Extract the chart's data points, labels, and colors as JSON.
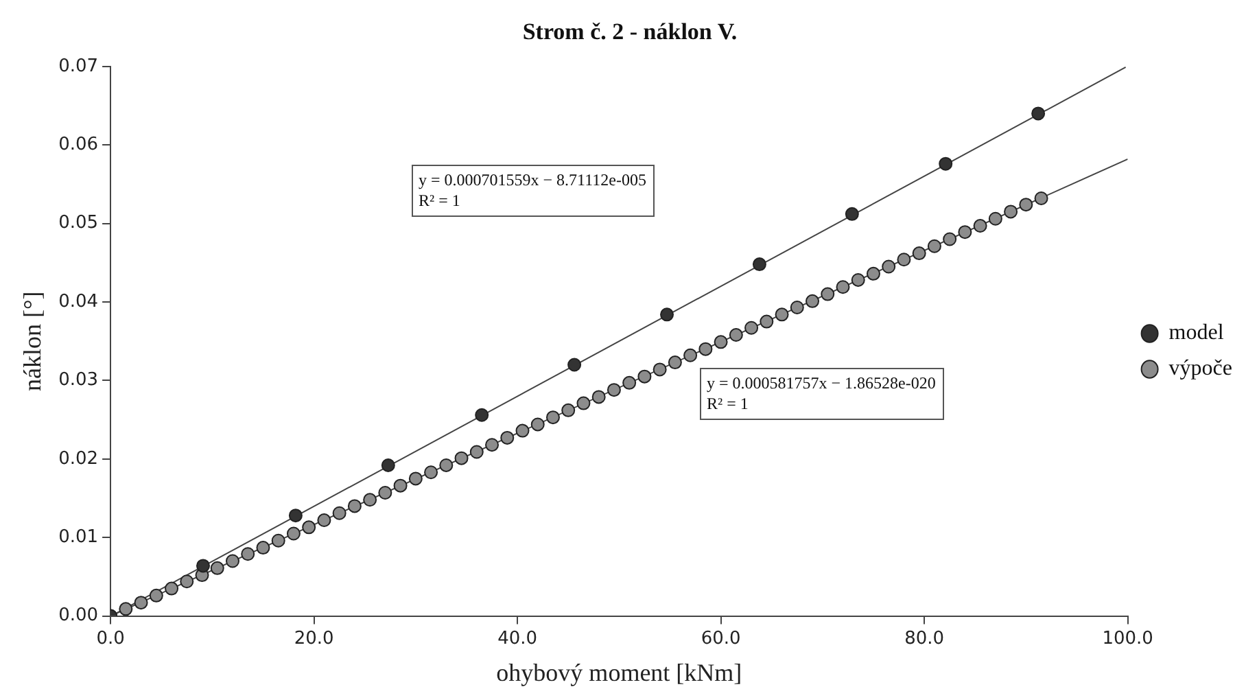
{
  "chart_data": {
    "type": "scatter",
    "title": "Strom č. 2 - náklon V.",
    "xlabel": "ohybový moment [kNm]",
    "ylabel": "náklon [°]",
    "xlim": [
      0,
      100
    ],
    "xticks": [
      {
        "value": 0,
        "label": "0.0"
      },
      {
        "value": 20,
        "label": "20.0"
      },
      {
        "value": 40,
        "label": "40.0"
      },
      {
        "value": 60,
        "label": "60.0"
      },
      {
        "value": 80,
        "label": "80.0"
      },
      {
        "value": 100,
        "label": "100.0"
      }
    ],
    "ylim": [
      0,
      0.07
    ],
    "yticks": [
      {
        "value": 0,
        "label": "0.00"
      },
      0.01,
      0.02,
      0.03,
      0.04,
      0.05,
      0.06,
      0.07
    ],
    "grid": false,
    "legend": "right",
    "annotations": [
      "y = 0.000701559x − 8.71112e-005\nR² = 1",
      "y = 0.000581757x − 1.86528e-020\nR² = 1"
    ],
    "series": [
      {
        "name": "model",
        "marker": "circle",
        "color": "#333333",
        "x": [
          0,
          9.1,
          18.2,
          27.3,
          36.5,
          45.6,
          54.7,
          63.8,
          72.9,
          82.1,
          91.2
        ],
        "values": [
          0,
          0.0064,
          0.0128,
          0.0192,
          0.0256,
          0.032,
          0.0384,
          0.0448,
          0.0512,
          0.0576,
          0.064
        ]
      },
      {
        "name": "výpoče",
        "marker": "circle",
        "color": "#8c8c8c",
        "x": [
          0,
          1.5,
          3,
          4.5,
          6,
          7.5,
          9,
          10.5,
          12,
          13.5,
          15,
          16.5,
          18,
          19.5,
          21,
          22.5,
          24,
          25.5,
          27,
          28.5,
          30,
          31.5,
          33,
          34.5,
          36,
          37.5,
          39,
          40.5,
          42,
          43.5,
          45,
          46.5,
          48,
          49.5,
          51,
          52.5,
          54,
          55.5,
          57,
          58.5,
          60,
          61.5,
          63,
          64.5,
          66,
          67.5,
          69,
          70.5,
          72,
          73.5,
          75,
          76.5,
          78,
          79.5,
          81,
          82.5,
          84,
          85.5,
          87,
          88.5,
          90,
          91.5
        ],
        "values": [
          0,
          0.0009,
          0.0017,
          0.0026,
          0.0035,
          0.0044,
          0.0052,
          0.0061,
          0.007,
          0.0079,
          0.0087,
          0.0096,
          0.0105,
          0.0113,
          0.0122,
          0.0131,
          0.014,
          0.0148,
          0.0157,
          0.0166,
          0.0175,
          0.0183,
          0.0192,
          0.0201,
          0.0209,
          0.0218,
          0.0227,
          0.0236,
          0.0244,
          0.0253,
          0.0262,
          0.0271,
          0.0279,
          0.0288,
          0.0297,
          0.0305,
          0.0314,
          0.0323,
          0.0332,
          0.034,
          0.0349,
          0.0358,
          0.0367,
          0.0375,
          0.0384,
          0.0393,
          0.0401,
          0.041,
          0.0419,
          0.0428,
          0.0436,
          0.0445,
          0.0454,
          0.0462,
          0.0471,
          0.048,
          0.0489,
          0.0497,
          0.0506,
          0.0515,
          0.0524,
          0.0532
        ]
      },
      {
        "type": "line",
        "marker": "none",
        "color": "#444444",
        "x": [
          0.5,
          99.8
        ],
        "values": [
          0.0003,
          0.0699
        ]
      },
      {
        "type": "line",
        "marker": "none",
        "color": "#444444",
        "x": [
          0,
          100
        ],
        "values": [
          0,
          0.0582
        ]
      }
    ]
  }
}
